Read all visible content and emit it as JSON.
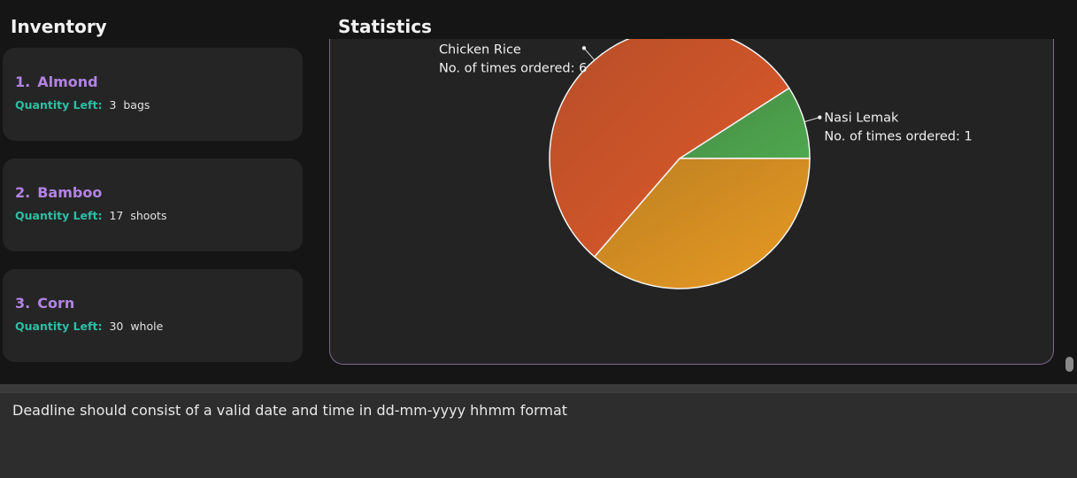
{
  "inventory": {
    "title": "Inventory",
    "qty_label": "Quantity Left:",
    "items": [
      {
        "index": "1.",
        "name": "Almond",
        "quantity": "3",
        "unit": "bags"
      },
      {
        "index": "2.",
        "name": "Bamboo",
        "quantity": "17",
        "unit": "shoots"
      },
      {
        "index": "3.",
        "name": "Corn",
        "quantity": "30",
        "unit": "whole"
      }
    ]
  },
  "statistics": {
    "title": "Statistics"
  },
  "chart_data": {
    "type": "pie",
    "slices": [
      {
        "name": "Nasi Lemak",
        "detail": "No. of times ordered: 1",
        "value": 1,
        "color": "#4fa84f"
      },
      {
        "name": "Chicken Rice",
        "detail": "No. of times ordered: 6",
        "value": 6,
        "color": "#e05a2a"
      },
      {
        "value": 4,
        "color": "#e89a22"
      }
    ]
  },
  "result_box": {
    "message": "Deadline should consist of a valid date and time in dd-mm-yyyy hhmm format"
  },
  "colors": {
    "accent_purple": "#b283e4",
    "accent_teal": "#2bbfa5",
    "background": "#151515",
    "card": "#252525"
  }
}
